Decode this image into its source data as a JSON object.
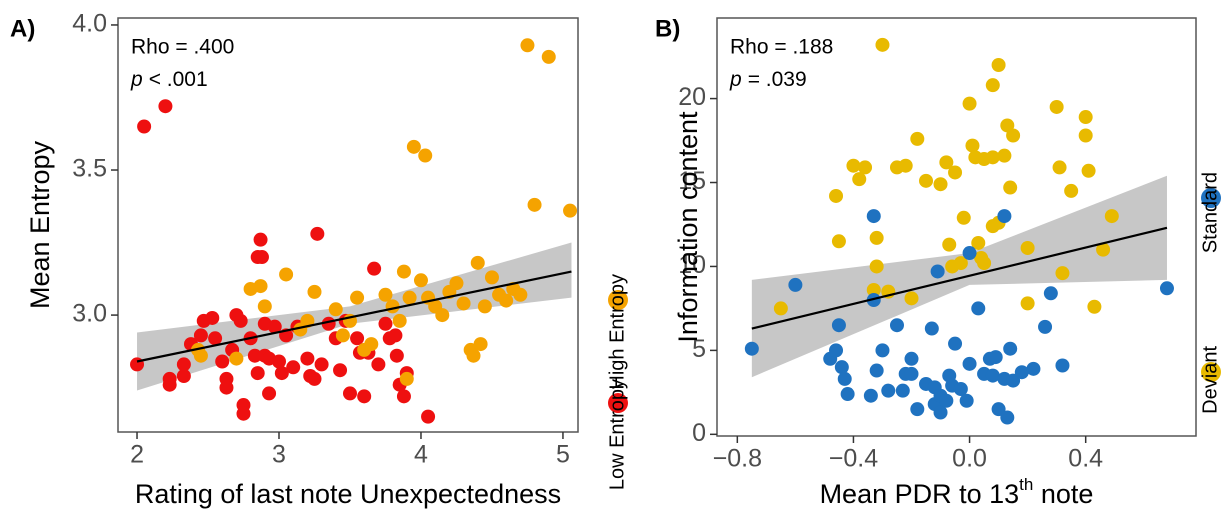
{
  "chart_data": [
    {
      "type": "scatter",
      "panel_label": "A)",
      "xlabel": "Rating of last note Unexpectedness",
      "ylabel": "Mean Entropy",
      "stat_label": "Rho = .400",
      "p_symbol": "p",
      "p_text": "< .001",
      "xlim": [
        1.866,
        5.106
      ],
      "ylim": [
        2.597,
        4.024
      ],
      "xticks": [
        2,
        3,
        4,
        5
      ],
      "yticks": [
        {
          "value": 3.0,
          "label": "3.0"
        },
        {
          "value": 3.5,
          "label": "3.5"
        },
        {
          "value": 4.0,
          "label": "4.0"
        }
      ],
      "legend": "right",
      "series": [
        {
          "name": "Low Entropy",
          "color": "#ee1010",
          "x": [
            2.0,
            2.05,
            2.2,
            2.23,
            2.23,
            2.33,
            2.33,
            2.38,
            2.45,
            2.47,
            2.53,
            2.55,
            2.6,
            2.63,
            2.63,
            2.67,
            2.7,
            2.73,
            2.75,
            2.75,
            2.8,
            2.83,
            2.85,
            2.85,
            2.87,
            2.88,
            2.9,
            2.9,
            2.93,
            2.93,
            2.97,
            3.0,
            3.02,
            3.05,
            3.1,
            3.13,
            3.2,
            3.22,
            3.25,
            3.27,
            3.3,
            3.35,
            3.4,
            3.43,
            3.47,
            3.5,
            3.55,
            3.57,
            3.6,
            3.63,
            3.67,
            3.7,
            3.75,
            3.78,
            3.82,
            3.83,
            3.85,
            3.88,
            3.9,
            4.05
          ],
          "values": [
            2.83,
            3.65,
            3.72,
            2.78,
            2.76,
            2.83,
            2.79,
            2.9,
            2.93,
            2.98,
            2.99,
            2.92,
            2.84,
            2.78,
            2.75,
            2.88,
            3.0,
            2.98,
            2.69,
            2.66,
            2.92,
            2.86,
            2.8,
            3.2,
            3.26,
            3.2,
            2.97,
            2.86,
            2.85,
            2.73,
            2.96,
            2.84,
            2.8,
            2.93,
            2.82,
            2.96,
            2.85,
            2.79,
            2.78,
            3.28,
            2.83,
            2.97,
            2.92,
            2.81,
            2.98,
            2.73,
            2.92,
            2.87,
            2.72,
            2.87,
            3.16,
            2.83,
            2.97,
            2.92,
            2.93,
            2.86,
            2.76,
            2.72,
            2.8,
            2.65
          ]
        },
        {
          "name": "High Entropy",
          "color": "#f5a300",
          "x": [
            2.43,
            2.45,
            2.7,
            2.8,
            2.87,
            2.9,
            3.05,
            3.15,
            3.2,
            3.25,
            3.4,
            3.45,
            3.5,
            3.55,
            3.6,
            3.65,
            3.75,
            3.8,
            3.85,
            3.88,
            3.9,
            3.92,
            3.95,
            4.03,
            4.0,
            4.05,
            4.1,
            4.15,
            4.2,
            4.25,
            4.3,
            4.35,
            4.37,
            4.4,
            4.42,
            4.45,
            4.5,
            4.55,
            4.6,
            4.65,
            4.7,
            4.75,
            4.8,
            4.9,
            5.05
          ],
          "values": [
            2.88,
            2.86,
            2.85,
            3.09,
            3.1,
            3.03,
            3.14,
            2.95,
            2.98,
            3.08,
            3.02,
            2.93,
            2.98,
            3.06,
            2.88,
            2.9,
            3.07,
            3.03,
            2.98,
            3.15,
            2.78,
            3.06,
            3.58,
            3.55,
            3.12,
            3.06,
            3.03,
            3.0,
            3.08,
            3.11,
            3.04,
            2.88,
            2.86,
            3.18,
            2.9,
            3.03,
            3.13,
            3.07,
            3.05,
            3.09,
            3.07,
            3.93,
            3.38,
            3.89,
            3.36
          ]
        }
      ],
      "fit": {
        "color": "#000000",
        "x": [
          2.0,
          5.06
        ],
        "values": [
          2.84,
          3.15
        ]
      },
      "band": {
        "color": "#bdbdbd",
        "x": [
          2.0,
          3.5,
          5.06
        ],
        "lower": [
          2.74,
          2.97,
          3.06
        ],
        "upper": [
          2.94,
          3.03,
          3.25
        ]
      }
    },
    {
      "type": "scatter",
      "panel_label": "B)",
      "xlabel": "Mean PDR to 13",
      "xlabel_sup": "th",
      "xlabel_end": " note",
      "ylabel": "Information content",
      "stat_label": "Rho = .188",
      "p_symbol": "p",
      "p_text": "= .039",
      "xlim": [
        -0.87,
        0.78
      ],
      "ylim": [
        -0.1,
        24.8
      ],
      "xticks": [
        {
          "value": -0.8,
          "label": "−0.8"
        },
        {
          "value": -0.4,
          "label": "−0.4"
        },
        {
          "value": 0,
          "label": "0.0"
        },
        {
          "value": 0.4,
          "label": "0.4"
        }
      ],
      "yticks": [
        0,
        5,
        10,
        15,
        20
      ],
      "legend": "right",
      "series": [
        {
          "name": "Deviant",
          "color": "#e8ba00",
          "x": [
            -0.65,
            -0.46,
            -0.45,
            -0.4,
            -0.38,
            -0.36,
            -0.33,
            -0.32,
            -0.32,
            -0.3,
            -0.28,
            -0.25,
            -0.22,
            -0.2,
            -0.18,
            -0.15,
            -0.1,
            -0.08,
            -0.07,
            -0.05,
            -0.03,
            -0.02,
            0.0,
            0.01,
            0.02,
            0.03,
            0.05,
            0.05,
            0.08,
            0.08,
            0.1,
            0.12,
            0.13,
            0.15,
            0.14,
            0.1,
            0.2,
            0.2,
            0.3,
            0.31,
            0.32,
            0.35,
            0.4,
            0.4,
            0.41,
            0.43,
            0.46,
            0.49,
            -0.06,
            0.04,
            0.08
          ],
          "values": [
            7.5,
            14.2,
            11.5,
            16.0,
            15.2,
            15.9,
            8.6,
            11.7,
            10.0,
            23.2,
            8.5,
            15.9,
            16.0,
            8.1,
            17.6,
            15.1,
            14.9,
            16.2,
            11.3,
            15.6,
            10.2,
            12.9,
            19.7,
            17.2,
            16.5,
            11.4,
            16.4,
            10.2,
            20.8,
            16.5,
            22.0,
            16.6,
            18.4,
            17.8,
            14.7,
            12.6,
            11.1,
            7.8,
            19.5,
            15.9,
            9.6,
            14.5,
            18.9,
            17.8,
            15.7,
            7.6,
            11.0,
            13.0,
            10.0,
            10.5,
            12.4
          ]
        },
        {
          "name": "Standard",
          "color": "#1f72c0",
          "x": [
            -0.75,
            -0.6,
            -0.48,
            -0.46,
            -0.45,
            -0.44,
            -0.43,
            -0.42,
            -0.34,
            -0.33,
            -0.33,
            -0.32,
            -0.3,
            -0.28,
            -0.25,
            -0.23,
            -0.22,
            -0.2,
            -0.18,
            -0.15,
            -0.13,
            -0.12,
            -0.12,
            -0.1,
            -0.1,
            -0.08,
            -0.07,
            -0.06,
            -0.05,
            -0.03,
            -0.01,
            0.0,
            0.0,
            0.03,
            0.05,
            0.07,
            0.08,
            0.1,
            0.12,
            0.12,
            0.13,
            0.14,
            0.15,
            0.18,
            0.22,
            0.26,
            0.28,
            0.32,
            0.68,
            -0.11,
            -0.2,
            0.09
          ],
          "values": [
            5.1,
            8.9,
            4.5,
            5.0,
            6.5,
            4.0,
            3.3,
            2.4,
            2.3,
            13.0,
            8.0,
            3.8,
            5.0,
            2.6,
            6.5,
            2.6,
            3.6,
            4.5,
            1.5,
            3.0,
            6.3,
            2.8,
            1.8,
            2.3,
            1.3,
            2.0,
            3.5,
            2.9,
            5.4,
            2.7,
            2.0,
            4.2,
            10.8,
            7.5,
            3.6,
            4.5,
            3.5,
            1.5,
            3.3,
            13.0,
            1.0,
            5.1,
            3.2,
            3.7,
            3.9,
            6.4,
            8.4,
            4.1,
            8.7,
            9.7,
            3.6,
            4.6
          ]
        }
      ],
      "fit": {
        "color": "#000000",
        "x": [
          -0.75,
          0.68
        ],
        "values": [
          6.3,
          12.3
        ]
      },
      "band": {
        "color": "#bdbdbd",
        "x": [
          -0.75,
          0.0,
          0.68
        ],
        "lower": [
          3.4,
          8.9,
          9.2
        ],
        "upper": [
          9.2,
          10.8,
          15.4
        ]
      }
    }
  ]
}
